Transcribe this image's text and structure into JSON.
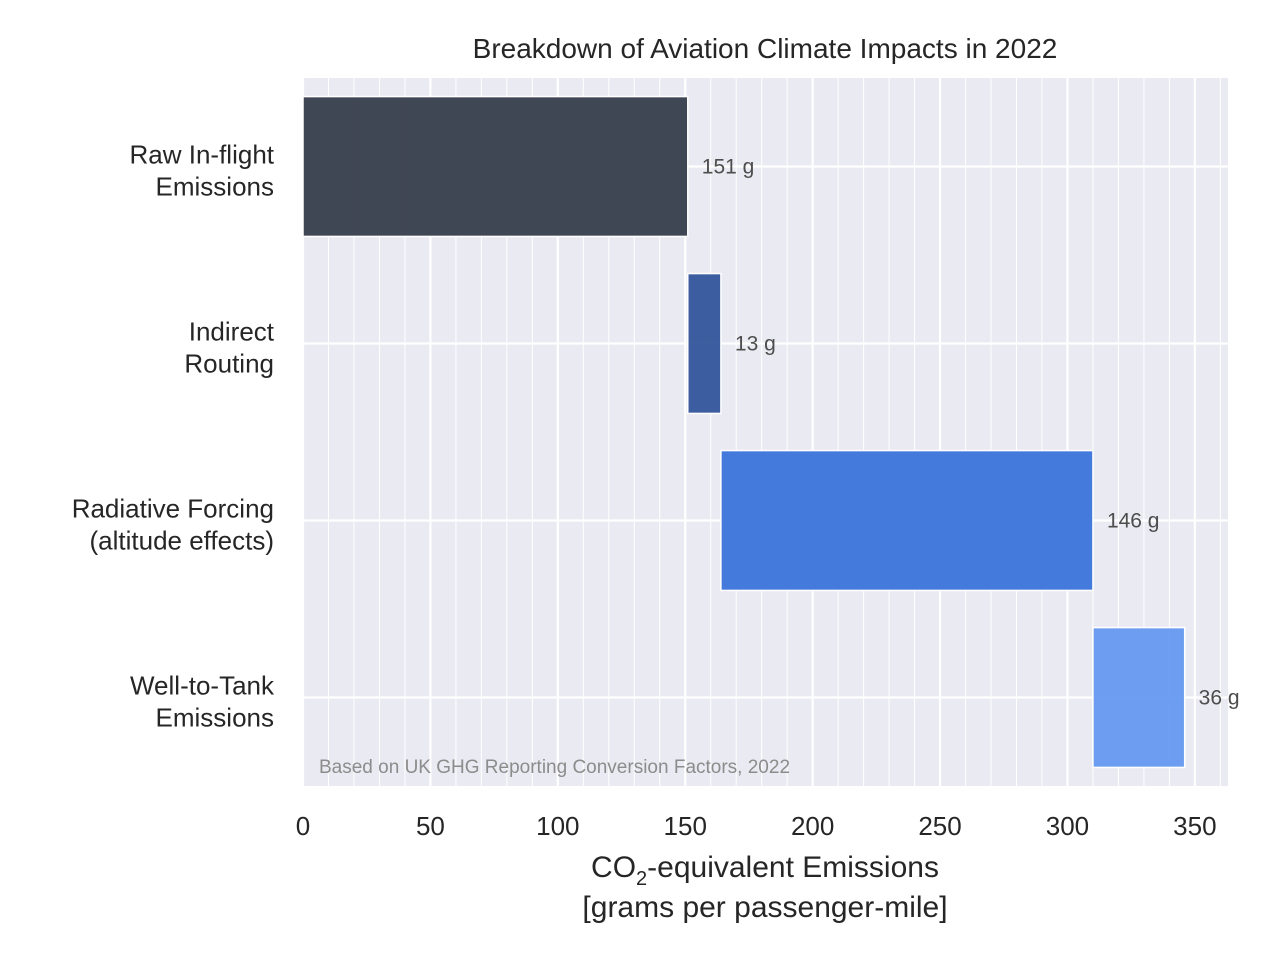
{
  "chart_data": {
    "type": "bar",
    "orientation": "horizontal",
    "style": "waterfall",
    "title": "Breakdown of Aviation Climate Impacts in 2022",
    "categories": [
      [
        "Raw In-flight",
        "Emissions"
      ],
      [
        "Indirect",
        "Routing"
      ],
      [
        "Radiative Forcing",
        "(altitude effects)"
      ],
      [
        "Well-to-Tank",
        "Emissions"
      ]
    ],
    "values": [
      151,
      13,
      146,
      36
    ],
    "value_labels": [
      "151 g",
      "13 g",
      "146 g",
      "36 g"
    ],
    "colors": [
      "#363d4b",
      "#33559a",
      "#3a74d9",
      "#6699f0"
    ],
    "xlabel": {
      "pre": "CO",
      "sub": "2",
      "post": "-equivalent Emissions",
      "line2": "[grams per passenger-mile]"
    },
    "xticks": [
      0,
      50,
      100,
      150,
      200,
      250,
      300,
      350
    ],
    "xlim": [
      0,
      363
    ],
    "grid": true,
    "minor_grid": true,
    "annotation": "Based on UK GHG Reporting Conversion Factors, 2022"
  }
}
